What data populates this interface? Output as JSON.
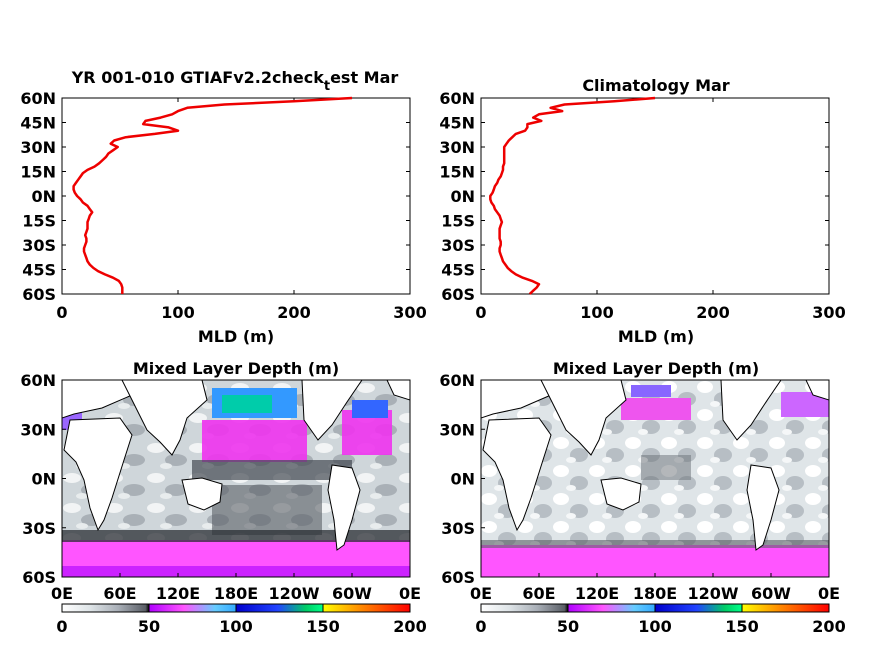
{
  "chart_data": [
    {
      "type": "line",
      "title_main": "YR 001-010 GTIAFv2.2check",
      "title_sub": "t",
      "title_tail": "est Mar",
      "xlabel": "MLD (m)",
      "xlim": [
        0,
        300
      ],
      "ylim": [
        -60,
        60
      ],
      "xticks": [
        "0",
        "100",
        "200",
        "300"
      ],
      "yticks": [
        "60N",
        "45N",
        "30N",
        "15N",
        "0N",
        "15S",
        "30S",
        "45S",
        "60S"
      ],
      "line_color": "#ee0000",
      "series": [
        {
          "lat": [
            60,
            58,
            56,
            54,
            52,
            50,
            48,
            46,
            44,
            42,
            40,
            38,
            36,
            34,
            32,
            30,
            28,
            26,
            24,
            22,
            20,
            18,
            16,
            14,
            12,
            10,
            8,
            6,
            4,
            2,
            0,
            -2,
            -4,
            -6,
            -8,
            -10,
            -12,
            -14,
            -16,
            -18,
            -20,
            -22,
            -24,
            -26,
            -28,
            -30,
            -32,
            -34,
            -36,
            -38,
            -40,
            -42,
            -44,
            -46,
            -48,
            -50,
            -52,
            -54,
            -56,
            -58,
            -60
          ],
          "mld": [
            250,
            200,
            140,
            108,
            100,
            95,
            85,
            72,
            70,
            92,
            100,
            80,
            55,
            45,
            42,
            48,
            44,
            40,
            38,
            35,
            32,
            28,
            22,
            18,
            16,
            14,
            12,
            10,
            10,
            11,
            13,
            16,
            18,
            22,
            24,
            26,
            24,
            23,
            22,
            22,
            22,
            21,
            20,
            21,
            21,
            20,
            19,
            19,
            20,
            21,
            22,
            24,
            27,
            31,
            37,
            44,
            49,
            51,
            52,
            52,
            52
          ]
        }
      ]
    },
    {
      "type": "line",
      "title": "Climatology Mar",
      "xlabel": "MLD (m)",
      "xlim": [
        0,
        300
      ],
      "ylim": [
        -60,
        60
      ],
      "xticks": [
        "0",
        "100",
        "200",
        "300"
      ],
      "yticks": [
        "60N",
        "45N",
        "30N",
        "15N",
        "0N",
        "15S",
        "30S",
        "45S",
        "60S"
      ],
      "line_color": "#ee0000",
      "series": [
        {
          "lat": [
            60,
            58,
            56,
            54,
            52,
            50,
            48,
            46,
            44,
            42,
            40,
            38,
            36,
            34,
            32,
            30,
            28,
            26,
            24,
            22,
            20,
            18,
            16,
            14,
            12,
            10,
            8,
            6,
            4,
            2,
            0,
            -2,
            -4,
            -6,
            -8,
            -10,
            -12,
            -14,
            -16,
            -18,
            -20,
            -22,
            -24,
            -26,
            -28,
            -30,
            -32,
            -34,
            -36,
            -38,
            -40,
            -42,
            -44,
            -46,
            -48,
            -50,
            -52,
            -54,
            -56,
            -58,
            -60
          ],
          "mld": [
            150,
            115,
            72,
            60,
            70,
            50,
            45,
            52,
            40,
            40,
            38,
            30,
            27,
            24,
            22,
            20,
            20,
            20,
            20,
            20,
            20,
            19,
            19,
            18,
            17,
            15,
            14,
            12,
            11,
            10,
            8,
            8,
            9,
            11,
            12,
            14,
            16,
            17,
            18,
            17,
            16,
            16,
            16,
            16,
            17,
            17,
            16,
            16,
            17,
            18,
            19,
            21,
            23,
            26,
            30,
            36,
            44,
            50,
            48,
            45,
            42
          ]
        }
      ]
    },
    {
      "type": "heatmap",
      "title": "Mixed Layer Depth (m)",
      "xticks": [
        "0E",
        "60E",
        "120E",
        "180E",
        "120W",
        "60W",
        "0E"
      ],
      "yticks": [
        "60N",
        "30N",
        "0N",
        "30S",
        "60S"
      ],
      "colorbar_ticks": [
        "0",
        "50",
        "100",
        "150",
        "200"
      ],
      "colorbar_range": [
        0,
        200
      ]
    },
    {
      "type": "heatmap",
      "title": "Mixed Layer Depth (m)",
      "xticks": [
        "0E",
        "60E",
        "120E",
        "180E",
        "120W",
        "60W",
        "0E"
      ],
      "yticks": [
        "60N",
        "30N",
        "0N",
        "30S",
        "60S"
      ],
      "colorbar_ticks": [
        "0",
        "50",
        "100",
        "150",
        "200"
      ],
      "colorbar_range": [
        0,
        200
      ]
    }
  ]
}
